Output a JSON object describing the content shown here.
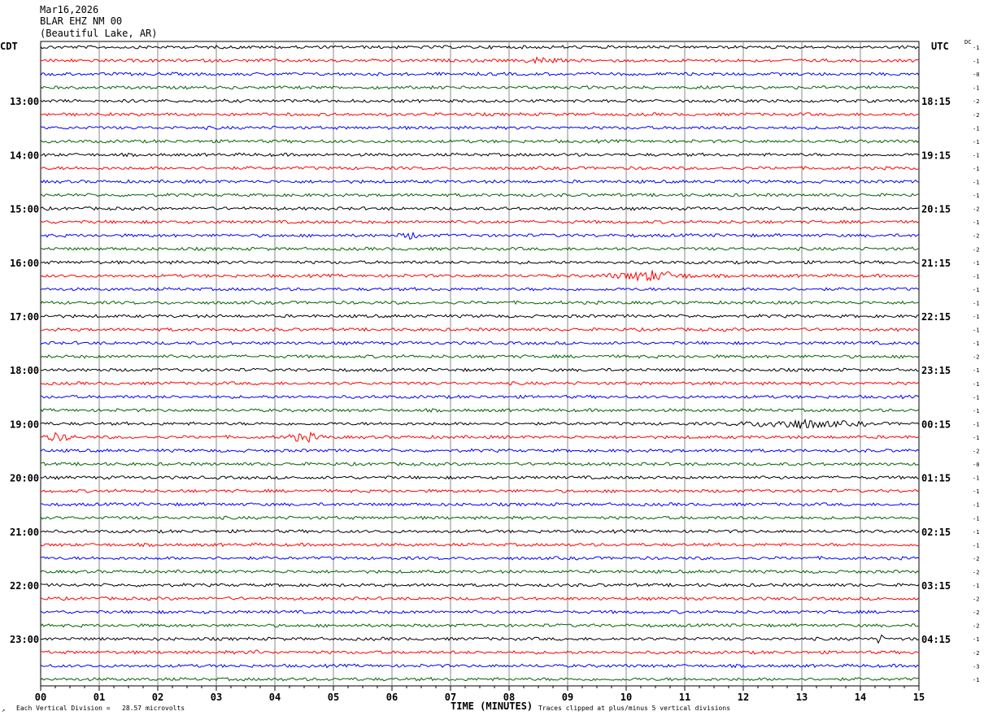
{
  "header": {
    "date": "Mar16,2026",
    "station": "BLAR EHZ NM 00",
    "location": "(Beautiful Lake, AR)"
  },
  "timezones": {
    "left": "CDT",
    "right": "UTC"
  },
  "dc_label": "DC",
  "footer": {
    "mark": "↗",
    "left": "Each Vertical Division =   28.57 microvolts",
    "right": "Traces clipped at plus/minus 5 vertical divisions"
  },
  "chart_data": {
    "type": "line",
    "xlabel": "TIME (MINUTES)",
    "x_ticks": [
      "00",
      "01",
      "02",
      "03",
      "04",
      "05",
      "06",
      "07",
      "08",
      "09",
      "10",
      "11",
      "12",
      "13",
      "14",
      "15"
    ],
    "xlim": [
      0,
      15
    ],
    "trace_count": 48,
    "trace_colors": [
      "#000000",
      "#ff0000",
      "#0000ff",
      "#006400"
    ],
    "left_hour_labels": [
      "13:00",
      "14:00",
      "15:00",
      "16:00",
      "17:00",
      "18:00",
      "19:00",
      "20:00",
      "21:00",
      "22:00",
      "23:00"
    ],
    "right_hour_labels": [
      "18:15",
      "19:15",
      "20:15",
      "21:15",
      "22:15",
      "23:15",
      "00:15",
      "01:15",
      "02:15",
      "03:15",
      "04:15"
    ],
    "hour_label_first_trace": 4,
    "dc_offsets": [
      "-1",
      "-1",
      "-0",
      "-1",
      "-2",
      "-2",
      "-1",
      "-1",
      "-1",
      "-1",
      "-1",
      "-1",
      "-2",
      "-1",
      "-2",
      "-2",
      "-1",
      "-1",
      "-1",
      "-1",
      "-1",
      "-1",
      "-1",
      "-2",
      "-1",
      "-1",
      "-1",
      "-1",
      "-1",
      "-1",
      "-2",
      "-0",
      "-1",
      "-1",
      "-1",
      "-1",
      "-1",
      "-1",
      "-2",
      "-2",
      "-1",
      "-2",
      "-2",
      "-2",
      "-1",
      "-2",
      "-3",
      "-1"
    ],
    "events": [
      {
        "trace": 17,
        "minute_start": 9.6,
        "minute_end": 11.2,
        "amplitude": 2.6
      },
      {
        "trace": 28,
        "minute_start": 11.75,
        "minute_end": 14.1,
        "amplitude": 2.2
      },
      {
        "trace": 29,
        "minute_start": 0.0,
        "minute_end": 0.6,
        "amplitude": 2.0
      },
      {
        "trace": 29,
        "minute_start": 4.1,
        "minute_end": 4.9,
        "amplitude": 2.2
      },
      {
        "trace": 44,
        "minute_start": 14.25,
        "minute_end": 14.4,
        "amplitude": 2.6
      },
      {
        "trace": 45,
        "minute_start": 3.55,
        "minute_end": 3.7,
        "amplitude": 2.3
      },
      {
        "trace": 1,
        "minute_start": 8.2,
        "minute_end": 8.9,
        "amplitude": 1.6
      },
      {
        "trace": 14,
        "minute_start": 6.1,
        "minute_end": 6.5,
        "amplitude": 1.6
      }
    ]
  }
}
